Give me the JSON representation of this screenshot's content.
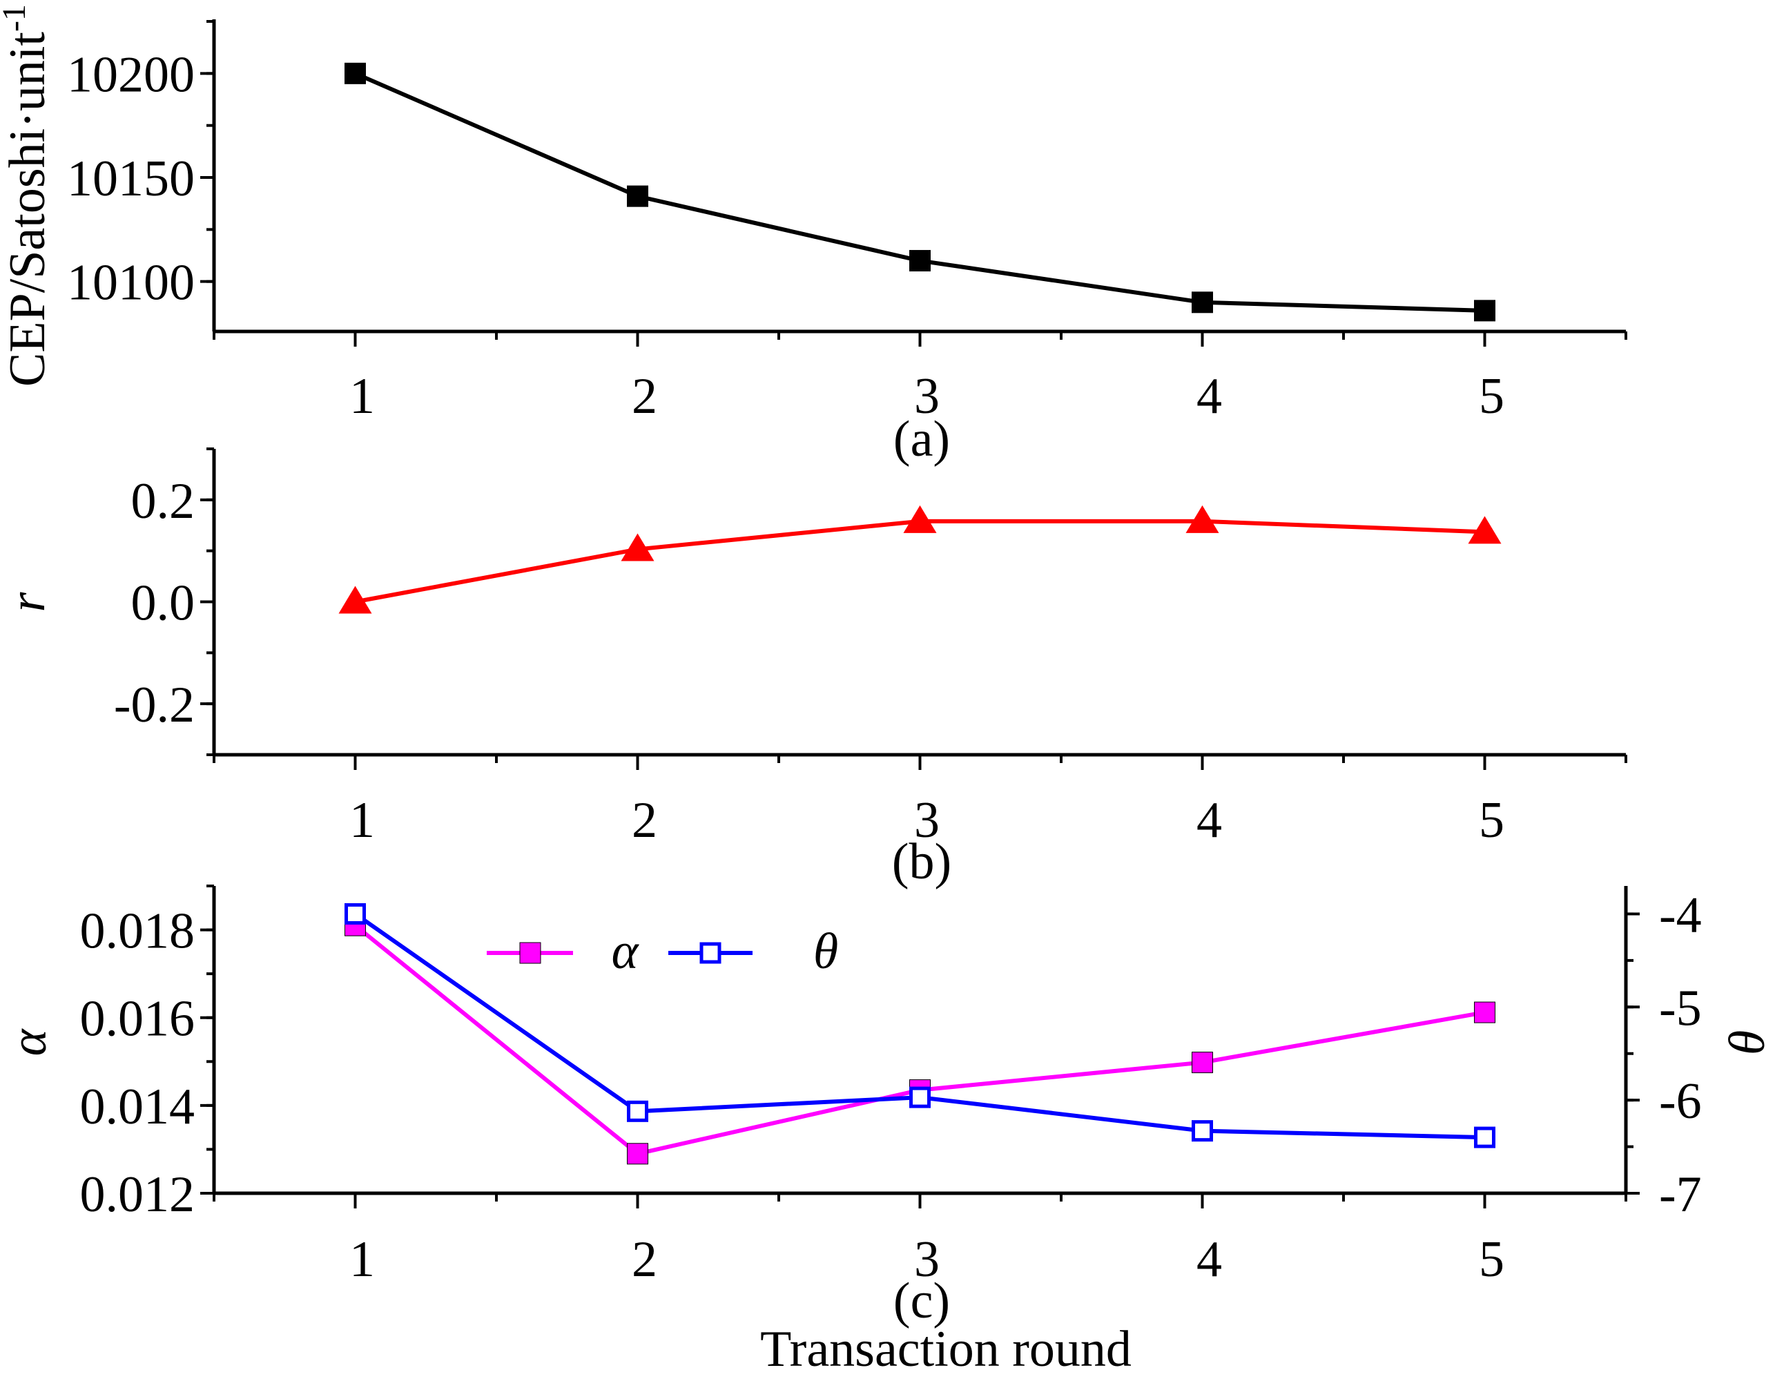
{
  "chart_data": [
    {
      "type": "line",
      "panel_tag": "(a)",
      "ylabel": "CEP/Satoshi·unit",
      "ylabel_superscript": "-1",
      "categories": [
        1,
        2,
        3,
        4,
        5
      ],
      "xticks": [
        "1",
        "2",
        "3",
        "4",
        "5"
      ],
      "xlim": [
        0.5,
        5.5
      ],
      "ylim": [
        10076,
        10226
      ],
      "yticks": [
        {
          "value": 10100,
          "label": "10100"
        },
        {
          "value": 10150,
          "label": "10150"
        },
        {
          "value": 10200,
          "label": "10200"
        }
      ],
      "series": [
        {
          "name": "CEP",
          "values": [
            10200,
            10141,
            10110,
            10090,
            10086
          ],
          "color": "#000000",
          "marker": "filled-square"
        }
      ]
    },
    {
      "type": "line",
      "panel_tag": "(b)",
      "ylabel": "r",
      "categories": [
        1,
        2,
        3,
        4,
        5
      ],
      "xticks": [
        "1",
        "2",
        "3",
        "4",
        "5"
      ],
      "xlim": [
        0.5,
        5.5
      ],
      "ylim": [
        -0.3,
        0.3
      ],
      "yticks": [
        {
          "value": -0.2,
          "label": "-0.2"
        },
        {
          "value": 0.0,
          "label": "0.0"
        },
        {
          "value": 0.2,
          "label": "0.2"
        }
      ],
      "series": [
        {
          "name": "r",
          "values": [
            0.0,
            0.103,
            0.158,
            0.158,
            0.137
          ],
          "color": "#ff0000",
          "marker": "filled-triangle"
        }
      ]
    },
    {
      "type": "line",
      "panel_tag": "(c)",
      "xlabel": "Transaction round",
      "ylabel": "α",
      "ylabel_right": "θ",
      "categories": [
        1,
        2,
        3,
        4,
        5
      ],
      "xticks": [
        "1",
        "2",
        "3",
        "4",
        "5"
      ],
      "xlim": [
        0.5,
        5.5
      ],
      "ylim": [
        0.012,
        0.019
      ],
      "ylim_right": [
        -7,
        -3.7
      ],
      "yticks": [
        {
          "value": 0.012,
          "label": "0.012"
        },
        {
          "value": 0.014,
          "label": "0.014"
        },
        {
          "value": 0.016,
          "label": "0.016"
        },
        {
          "value": 0.018,
          "label": "0.018"
        }
      ],
      "yticks_right": [
        {
          "value": -7,
          "label": "-7"
        },
        {
          "value": -6,
          "label": "-6"
        },
        {
          "value": -5,
          "label": "-5"
        },
        {
          "value": -4,
          "label": "-4"
        }
      ],
      "legend": [
        "α",
        "θ"
      ],
      "legend_position": "top-left",
      "series": [
        {
          "name": "α",
          "axis": "left",
          "values": [
            0.0181,
            0.0129,
            0.01435,
            0.01498,
            0.01612
          ],
          "color": "#ff00ff",
          "marker": "filled-square"
        },
        {
          "name": "θ",
          "axis": "right",
          "values": [
            -4.0,
            -6.12,
            -5.97,
            -6.33,
            -6.4
          ],
          "color": "#0000ff",
          "marker": "open-square"
        }
      ]
    }
  ]
}
